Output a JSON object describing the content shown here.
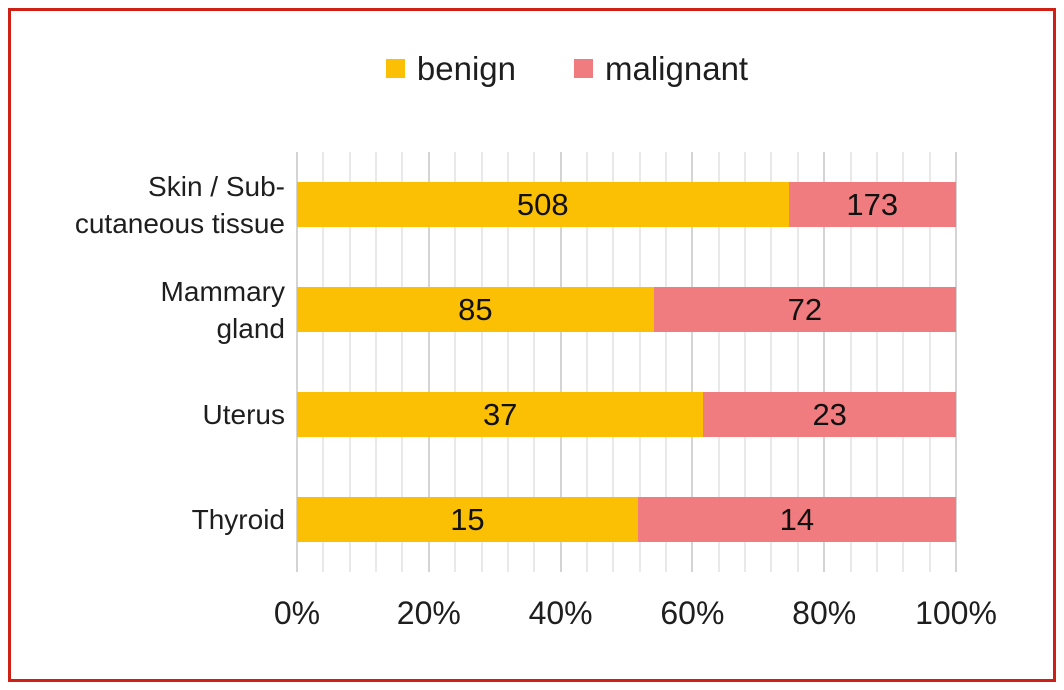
{
  "figure": {
    "border_color": "#ce2014",
    "background": "#ffffff"
  },
  "legend": {
    "position": "top-center",
    "entries": [
      {
        "label": "benign",
        "color": "#fbbf04",
        "swatch_icon": "square-swatch-icon"
      },
      {
        "label": "malignant",
        "color": "#f07c80",
        "swatch_icon": "square-swatch-icon"
      }
    ]
  },
  "chart_data": {
    "type": "bar",
    "subtype": "horizontal-100pct-stacked",
    "title": "",
    "xlabel": "",
    "ylabel": "",
    "categories": [
      "Skin / Sub-cutaneous tissue",
      "Mammary gland",
      "Uterus",
      "Thyroid"
    ],
    "category_label_lines": [
      [
        "Skin / Sub-",
        "cutaneous tissue"
      ],
      [
        "Mammary",
        "gland"
      ],
      [
        "Uterus"
      ],
      [
        "Thyroid"
      ]
    ],
    "series": [
      {
        "name": "benign",
        "color": "#fbbf04",
        "values": [
          508,
          85,
          37,
          15
        ]
      },
      {
        "name": "malignant",
        "color": "#f07c80",
        "values": [
          173,
          72,
          23,
          14
        ]
      }
    ],
    "value_labels": "centered-in-segment",
    "x_axis": {
      "min": 0,
      "max": 100,
      "major_unit_pct": 20,
      "minor_unit_pct": 4,
      "tick_labels": [
        "0%",
        "20%",
        "40%",
        "60%",
        "80%",
        "100%"
      ]
    },
    "grid": {
      "minor_color": "#e9e9e9",
      "major_color": "#d4d4d4"
    },
    "legend_position": "top"
  }
}
